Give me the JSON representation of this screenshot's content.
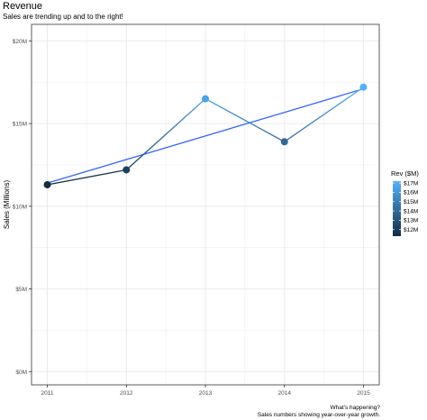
{
  "chart_data": {
    "type": "line",
    "title": "Revenue",
    "subtitle": "Sales are trending up and to the right!",
    "ylabel": "Sales (Millions)",
    "xlabel": "",
    "caption_line1": "What's happening?",
    "caption_line2": "Sales numbers showing year-over-year growth.",
    "x": [
      2011,
      2012,
      2013,
      2014,
      2015
    ],
    "x_tick_labels": [
      "2011",
      "2012",
      "2013",
      "2014",
      "2015"
    ],
    "series": [
      {
        "values": [
          11.3,
          12.2,
          16.5,
          13.9,
          17.2
        ]
      }
    ],
    "trend_line": {
      "start": 11.4,
      "end": 17.1
    },
    "y_ticks": [
      0,
      5,
      10,
      15,
      20
    ],
    "y_tick_labels": [
      "$0M",
      "$5M",
      "$10M",
      "$15M",
      "$20M"
    ],
    "ylim": [
      -0.8,
      21
    ],
    "xlim": [
      2010.8,
      2015.2
    ],
    "grid": true,
    "legend": {
      "title": "Rev ($M)",
      "position": "right",
      "labels": [
        "$17M",
        "$16M",
        "$15M",
        "$14M",
        "$13M",
        "$12M"
      ],
      "values": [
        17,
        16,
        15,
        14,
        13,
        12
      ],
      "range": [
        11.3,
        17.2
      ]
    },
    "colors": {
      "low": "#132B43",
      "high": "#56B1F7",
      "trend": "#3366FF",
      "panel_border": "#333333",
      "grid": "#ebebeb"
    }
  }
}
